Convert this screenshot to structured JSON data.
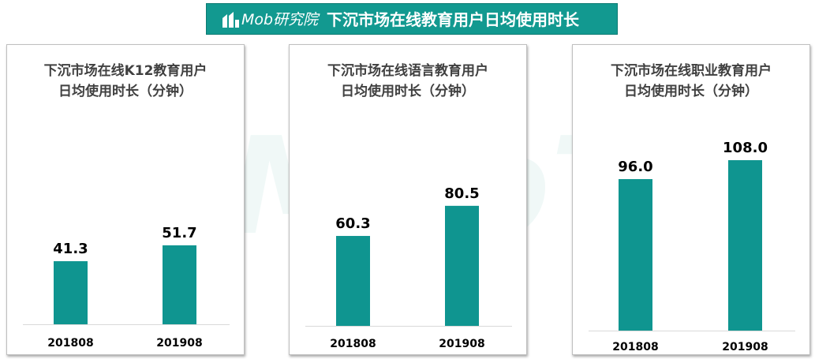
{
  "header": {
    "logo_text": "Mob研究院",
    "title": "下沉市场在线教育用户日均使用时长"
  },
  "watermark_text": "MobTech",
  "colors": {
    "accent": "#0f9590",
    "header_bg": "#129990",
    "title_text": "#404040"
  },
  "chart_data": [
    {
      "type": "bar",
      "title_lines": [
        "下沉市场在线K12教育用户",
        "日均使用时长（分钟）"
      ],
      "categories": [
        "201808",
        "201908"
      ],
      "values": [
        41.3,
        51.7
      ],
      "value_labels": [
        "41.3",
        "51.7"
      ],
      "ylim": [
        0,
        120
      ]
    },
    {
      "type": "bar",
      "title_lines": [
        "下沉市场在线语言教育用户",
        "日均使用时长（分钟）"
      ],
      "categories": [
        "201808",
        "201908"
      ],
      "values": [
        60.3,
        80.5
      ],
      "value_labels": [
        "60.3",
        "80.5"
      ],
      "ylim": [
        0,
        120
      ]
    },
    {
      "type": "bar",
      "title_lines": [
        "下沉市场在线职业教育用户",
        "日均使用时长（分钟）"
      ],
      "categories": [
        "201808",
        "201908"
      ],
      "values": [
        96.0,
        108.0
      ],
      "value_labels": [
        "96.0",
        "108.0"
      ],
      "ylim": [
        0,
        120
      ]
    }
  ]
}
